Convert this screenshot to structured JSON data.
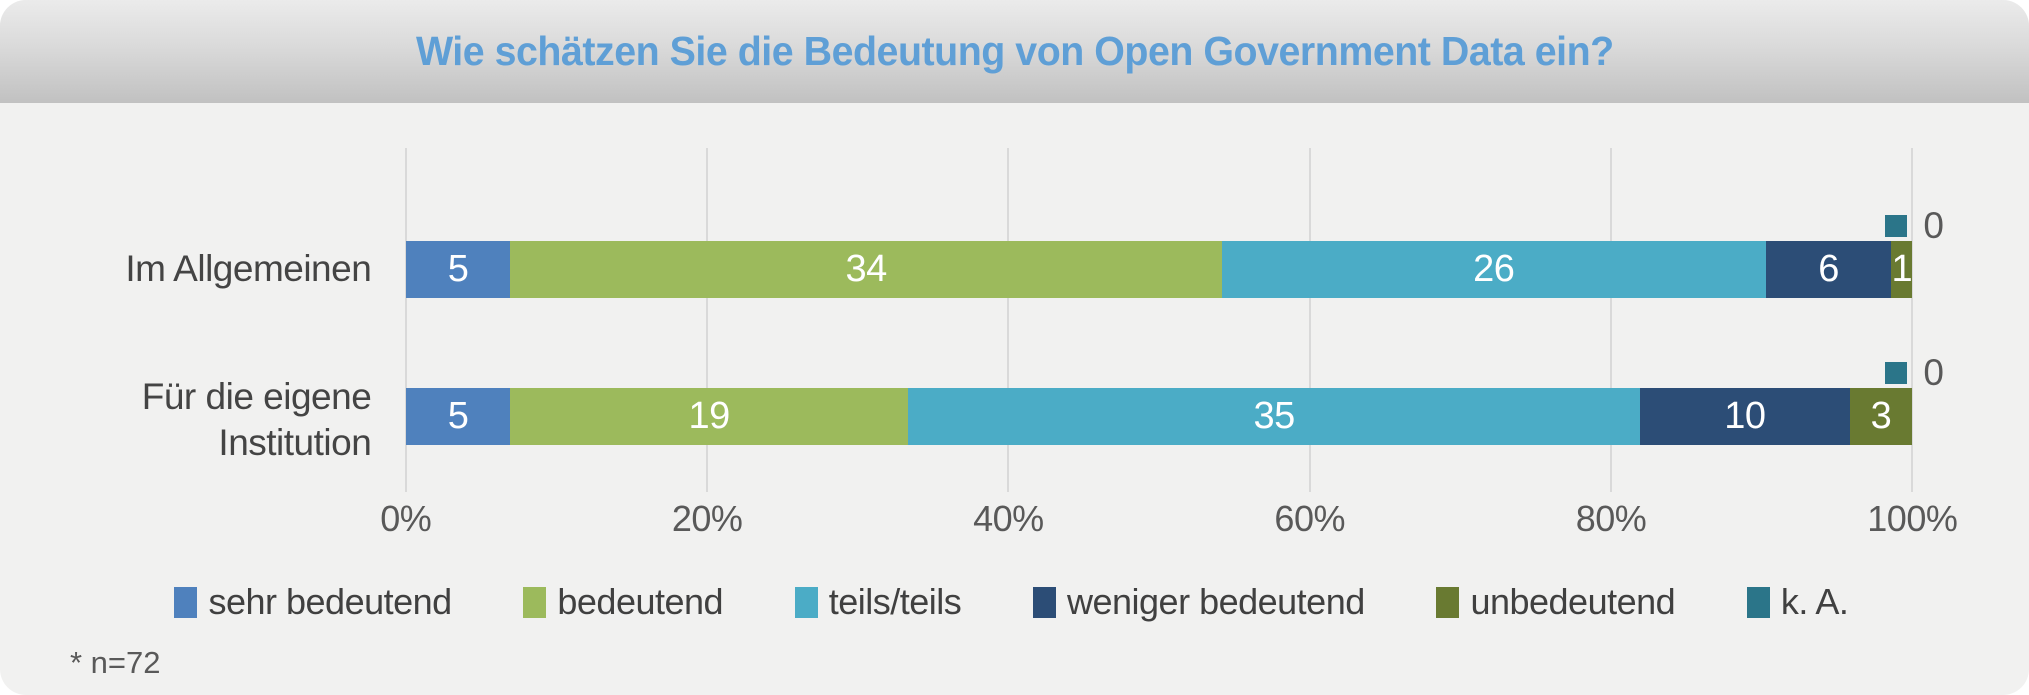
{
  "title": "Wie schätzen Sie die Bedeutung von Open Government Data ein?",
  "footnote": "* n=72",
  "chart_data": {
    "type": "bar",
    "orientation": "horizontal",
    "stacked": true,
    "sample_size": 72,
    "title": "Wie schätzen Sie die Bedeutung von Open Government Data ein?",
    "categories": [
      "Im Allgemeinen",
      "Für die eigene Institution"
    ],
    "series": [
      {
        "name": "sehr bedeutend",
        "color": "#4f81bd",
        "values": [
          5,
          5
        ],
        "label_style": "inside"
      },
      {
        "name": "bedeutend",
        "color": "#9cba5c",
        "values": [
          34,
          19
        ],
        "label_style": "inside"
      },
      {
        "name": "teils/teils",
        "color": "#4bacc6",
        "values": [
          26,
          35
        ],
        "label_style": "inside"
      },
      {
        "name": "weniger bedeutend",
        "color": "#2c4d76",
        "values": [
          6,
          10
        ],
        "label_style": "inside"
      },
      {
        "name": "unbedeutend",
        "color": "#697a31",
        "values": [
          1,
          3
        ],
        "label_style": "inside"
      },
      {
        "name": "k. A.",
        "color": "#2b7589",
        "values": [
          0,
          0
        ],
        "label_style": "marker-outside"
      }
    ],
    "x_ticks": [
      "0%",
      "20%",
      "40%",
      "60%",
      "80%",
      "100%"
    ],
    "xlim": [
      0,
      100
    ],
    "axis_unit": "percent",
    "grid": "vertical",
    "gridline_color": "#d9d9d9",
    "legend_position": "bottom",
    "background_color": "#f1f1f0",
    "title_color": "#5f9fd6"
  }
}
